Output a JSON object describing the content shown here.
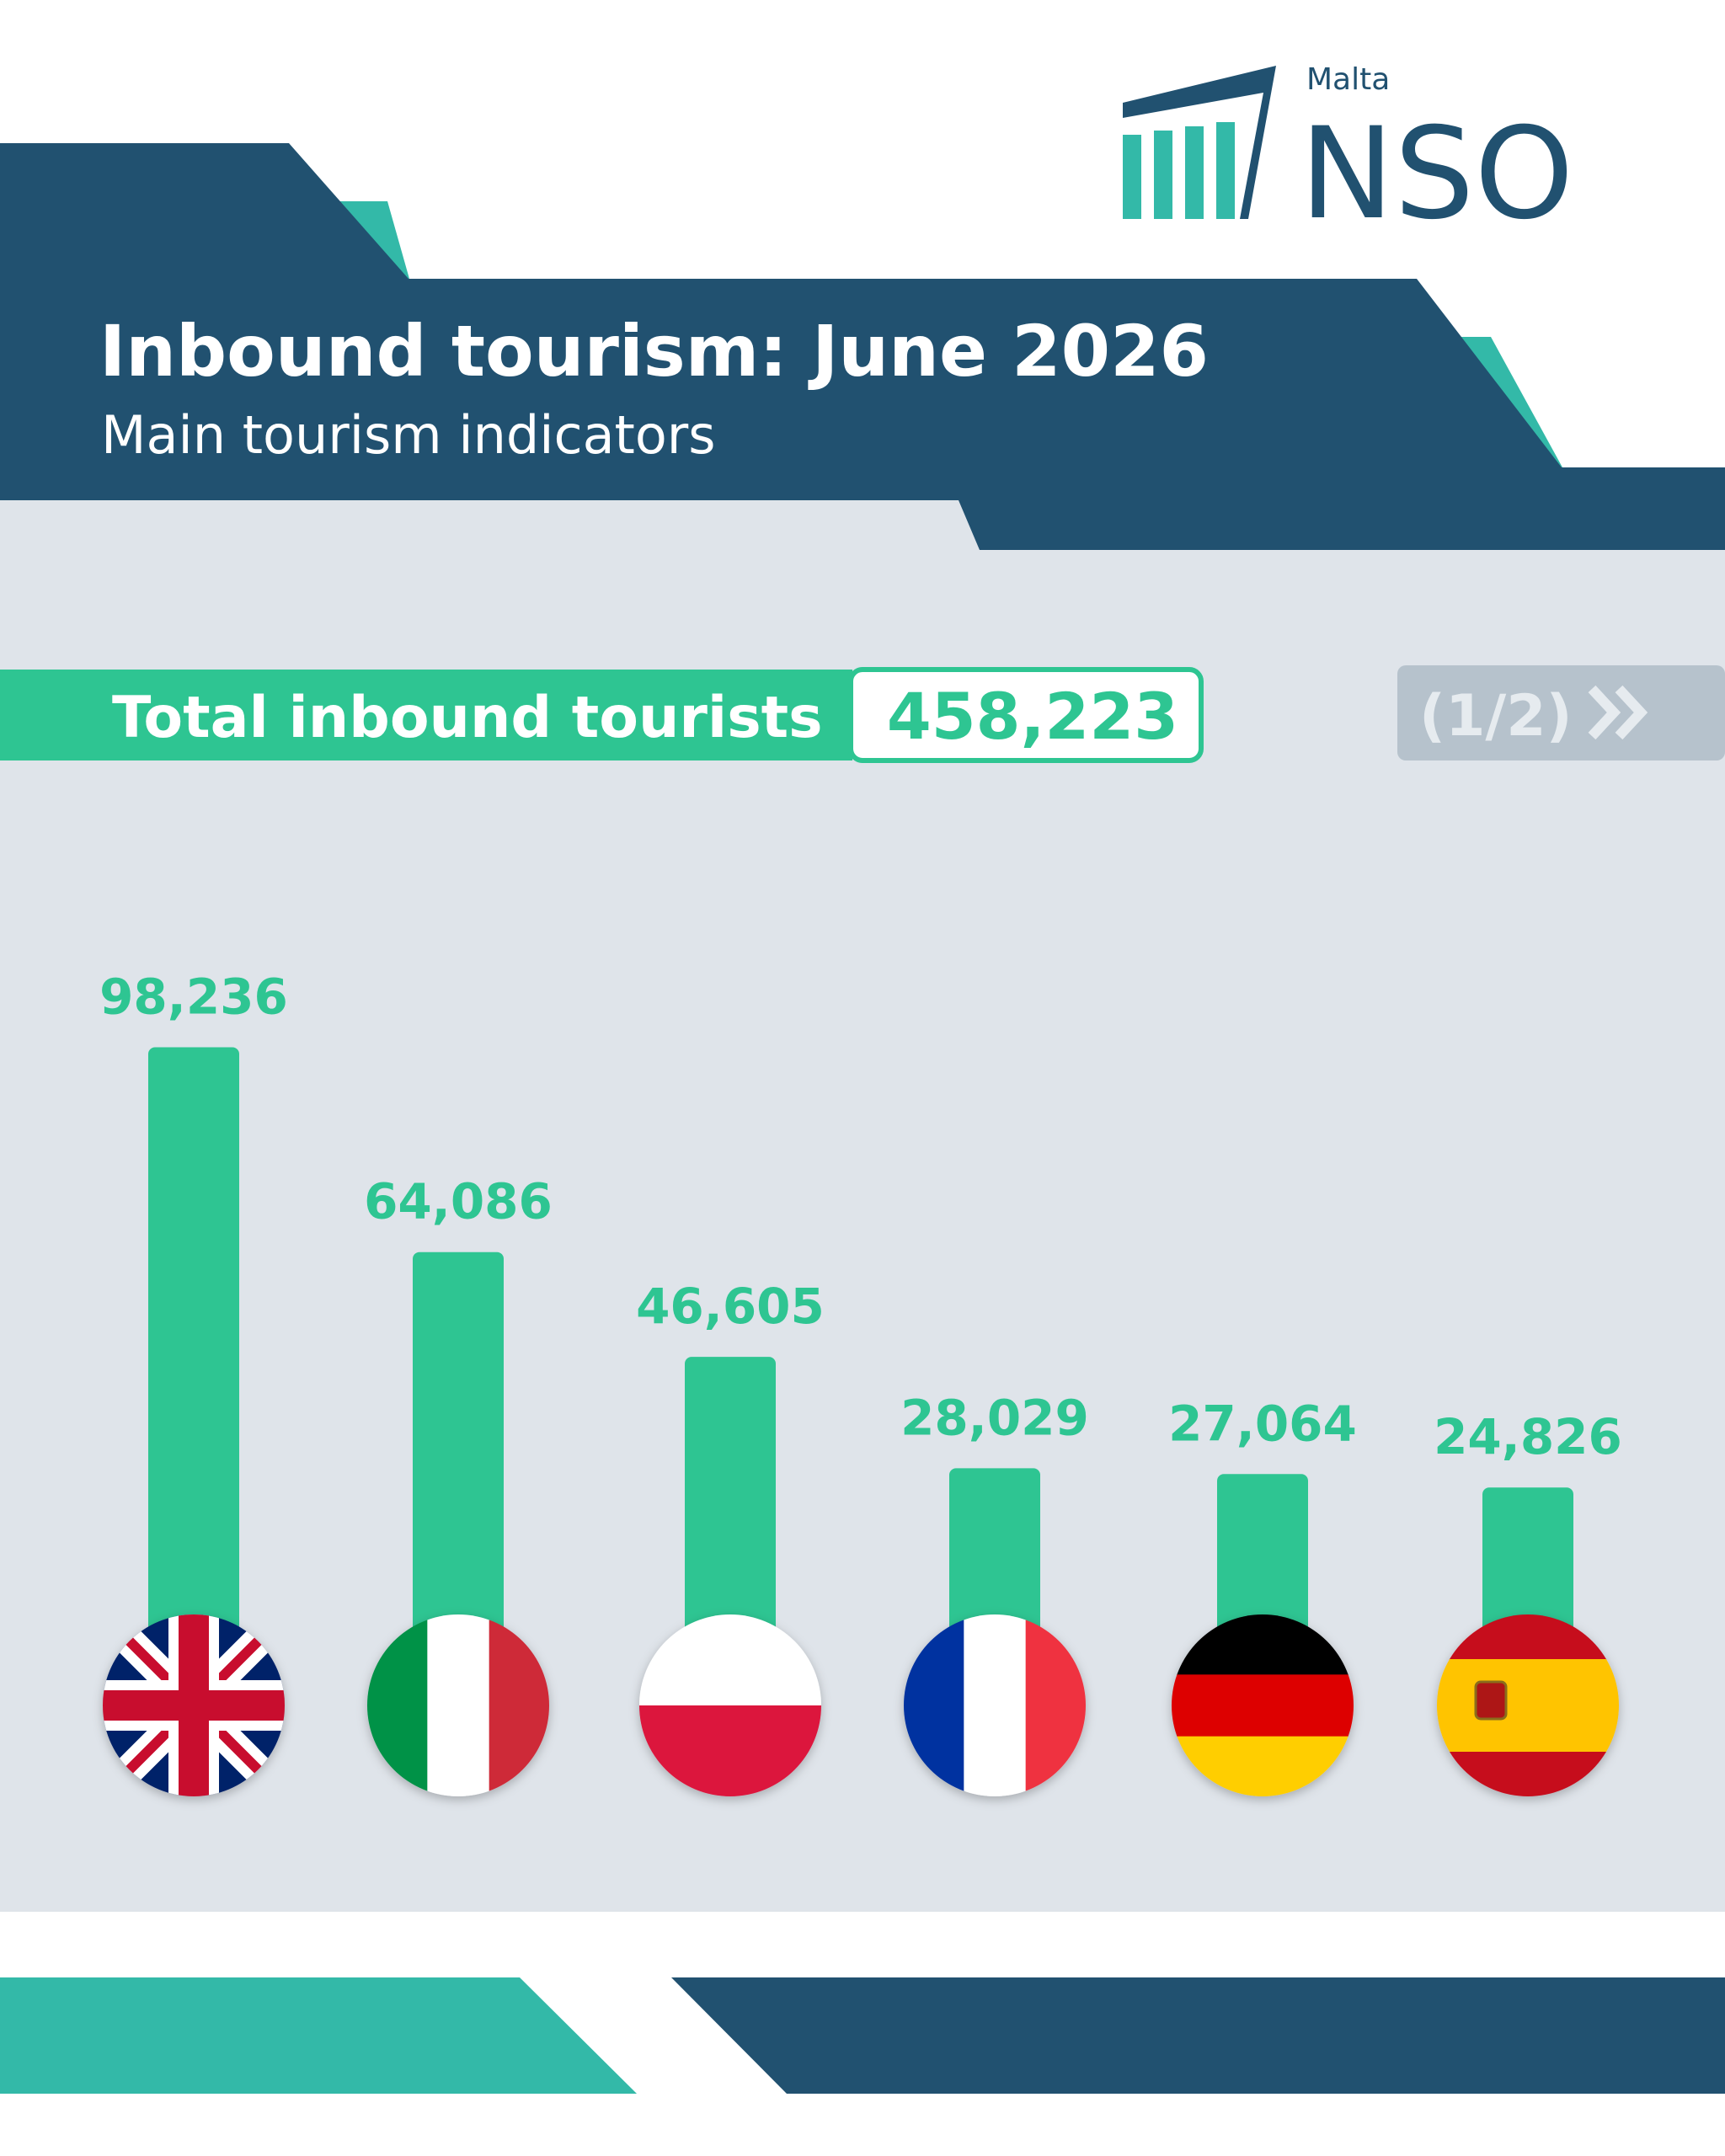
{
  "header": {
    "brand": "Malta",
    "logo": "NSO",
    "pager": "(1/2)"
  },
  "summary": {
    "label": "Total inbound tourists",
    "value": "458,223"
  },
  "chart_data": {
    "type": "bar",
    "title": "Inbound tourism: June 2026",
    "subtitle": "Main tourism indicators",
    "values": [
      98236,
      64086,
      46605,
      28029,
      27064,
      24826
    ],
    "value_labels": [
      "98,236",
      "64,086",
      "46,605",
      "28,029",
      "27,064",
      "24,826"
    ],
    "color": "#2ec592",
    "ylim": [
      0,
      100000
    ]
  }
}
